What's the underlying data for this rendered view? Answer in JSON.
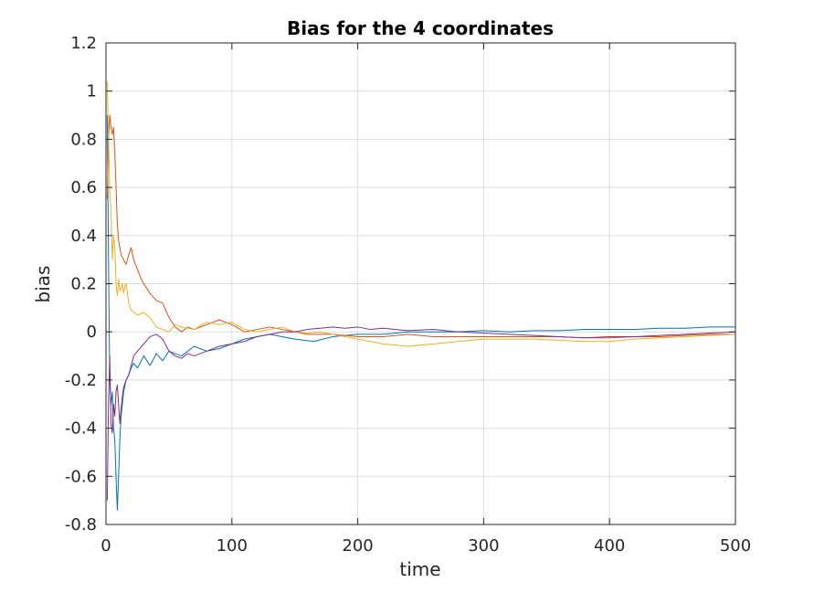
{
  "chart_data": {
    "type": "line",
    "title": "Bias for the 4 coordinates",
    "xlabel": "time",
    "ylabel": "bias",
    "xlim": [
      0,
      500
    ],
    "ylim": [
      -0.8,
      1.2
    ],
    "xticks": [
      0,
      100,
      200,
      300,
      400,
      500
    ],
    "xtick_labels": [
      "0",
      "100",
      "200",
      "300",
      "400",
      "500"
    ],
    "yticks": [
      -0.8,
      -0.6,
      -0.4,
      -0.2,
      0,
      0.2,
      0.4,
      0.6,
      0.8,
      1,
      1.2
    ],
    "ytick_labels": [
      "-0.8",
      "-0.6",
      "-0.4",
      "-0.2",
      "0",
      "0.2",
      "0.4",
      "0.6",
      "0.8",
      "1",
      "1.2"
    ],
    "grid": true,
    "legend": "none",
    "series": [
      {
        "color": "#0072BD",
        "points": [
          [
            1,
            0.9
          ],
          [
            2,
            0.3
          ],
          [
            3,
            -0.2
          ],
          [
            4,
            -0.3
          ],
          [
            5,
            -0.25
          ],
          [
            6,
            -0.4
          ],
          [
            7,
            -0.45
          ],
          [
            8,
            -0.6
          ],
          [
            9,
            -0.74
          ],
          [
            10,
            -0.6
          ],
          [
            11,
            -0.45
          ],
          [
            12,
            -0.35
          ],
          [
            14,
            -0.25
          ],
          [
            16,
            -0.2
          ],
          [
            18,
            -0.18
          ],
          [
            20,
            -0.15
          ],
          [
            22,
            -0.13
          ],
          [
            25,
            -0.15
          ],
          [
            30,
            -0.1
          ],
          [
            35,
            -0.14
          ],
          [
            40,
            -0.09
          ],
          [
            45,
            -0.12
          ],
          [
            50,
            -0.08
          ],
          [
            60,
            -0.1
          ],
          [
            70,
            -0.06
          ],
          [
            80,
            -0.08
          ],
          [
            90,
            -0.07
          ],
          [
            100,
            -0.05
          ],
          [
            110,
            -0.03
          ],
          [
            120,
            -0.02
          ],
          [
            130,
            -0.01
          ],
          [
            140,
            -0.02
          ],
          [
            150,
            -0.03
          ],
          [
            165,
            -0.04
          ],
          [
            180,
            -0.02
          ],
          [
            200,
            -0.01
          ],
          [
            220,
            -0.01
          ],
          [
            240,
            0.0
          ],
          [
            260,
            0.0
          ],
          [
            280,
            0.0
          ],
          [
            300,
            0.005
          ],
          [
            320,
            0.0
          ],
          [
            340,
            0.005
          ],
          [
            360,
            0.005
          ],
          [
            380,
            0.01
          ],
          [
            400,
            0.01
          ],
          [
            420,
            0.01
          ],
          [
            440,
            0.015
          ],
          [
            460,
            0.015
          ],
          [
            480,
            0.02
          ],
          [
            500,
            0.02
          ]
        ]
      },
      {
        "color": "#D95319",
        "points": [
          [
            1,
            0.55
          ],
          [
            2,
            0.8
          ],
          [
            3,
            0.9
          ],
          [
            4,
            0.85
          ],
          [
            5,
            0.82
          ],
          [
            6,
            0.85
          ],
          [
            7,
            0.75
          ],
          [
            8,
            0.6
          ],
          [
            9,
            0.45
          ],
          [
            10,
            0.38
          ],
          [
            12,
            0.32
          ],
          [
            14,
            0.3
          ],
          [
            16,
            0.28
          ],
          [
            18,
            0.32
          ],
          [
            20,
            0.35
          ],
          [
            22,
            0.3
          ],
          [
            25,
            0.26
          ],
          [
            28,
            0.22
          ],
          [
            30,
            0.2
          ],
          [
            35,
            0.16
          ],
          [
            40,
            0.13
          ],
          [
            45,
            0.12
          ],
          [
            50,
            0.06
          ],
          [
            55,
            0.02
          ],
          [
            60,
            0.0
          ],
          [
            65,
            0.02
          ],
          [
            70,
            0.01
          ],
          [
            80,
            0.03
          ],
          [
            90,
            0.05
          ],
          [
            100,
            0.03
          ],
          [
            110,
            0.0
          ],
          [
            120,
            0.01
          ],
          [
            130,
            0.02
          ],
          [
            140,
            0.01
          ],
          [
            150,
            0.0
          ],
          [
            160,
            -0.01
          ],
          [
            180,
            -0.01
          ],
          [
            200,
            -0.02
          ],
          [
            220,
            -0.02
          ],
          [
            240,
            -0.01
          ],
          [
            260,
            -0.02
          ],
          [
            280,
            -0.02
          ],
          [
            300,
            -0.02
          ],
          [
            320,
            -0.02
          ],
          [
            340,
            -0.02
          ],
          [
            360,
            -0.02
          ],
          [
            380,
            -0.025
          ],
          [
            400,
            -0.025
          ],
          [
            420,
            -0.02
          ],
          [
            440,
            -0.02
          ],
          [
            460,
            -0.015
          ],
          [
            480,
            -0.01
          ],
          [
            500,
            -0.01
          ]
        ]
      },
      {
        "color": "#EDB120",
        "points": [
          [
            1,
            1.04
          ],
          [
            2,
            0.8
          ],
          [
            3,
            0.6
          ],
          [
            4,
            0.5
          ],
          [
            5,
            0.3
          ],
          [
            6,
            0.4
          ],
          [
            7,
            0.35
          ],
          [
            8,
            0.2
          ],
          [
            9,
            0.15
          ],
          [
            10,
            0.22
          ],
          [
            11,
            0.17
          ],
          [
            12,
            0.18
          ],
          [
            13,
            0.2
          ],
          [
            14,
            0.16
          ],
          [
            15,
            0.19
          ],
          [
            16,
            0.2
          ],
          [
            18,
            0.12
          ],
          [
            20,
            0.09
          ],
          [
            25,
            0.07
          ],
          [
            30,
            0.08
          ],
          [
            35,
            0.06
          ],
          [
            40,
            0.02
          ],
          [
            45,
            0.01
          ],
          [
            50,
            0.0
          ],
          [
            55,
            0.03
          ],
          [
            60,
            0.02
          ],
          [
            70,
            0.01
          ],
          [
            80,
            0.04
          ],
          [
            90,
            0.03
          ],
          [
            100,
            0.04
          ],
          [
            110,
            0.01
          ],
          [
            120,
            0.0
          ],
          [
            130,
            0.01
          ],
          [
            140,
            0.02
          ],
          [
            150,
            0.0
          ],
          [
            160,
            -0.005
          ],
          [
            170,
            0.0
          ],
          [
            180,
            -0.01
          ],
          [
            190,
            -0.02
          ],
          [
            200,
            -0.03
          ],
          [
            220,
            -0.05
          ],
          [
            240,
            -0.06
          ],
          [
            260,
            -0.05
          ],
          [
            280,
            -0.04
          ],
          [
            300,
            -0.03
          ],
          [
            320,
            -0.03
          ],
          [
            340,
            -0.03
          ],
          [
            360,
            -0.035
          ],
          [
            380,
            -0.04
          ],
          [
            400,
            -0.04
          ],
          [
            420,
            -0.03
          ],
          [
            440,
            -0.025
          ],
          [
            460,
            -0.02
          ],
          [
            480,
            -0.015
          ],
          [
            500,
            -0.01
          ]
        ]
      },
      {
        "color": "#7E2F8E",
        "points": [
          [
            1,
            -0.7
          ],
          [
            2,
            -0.3
          ],
          [
            3,
            -0.1
          ],
          [
            4,
            -0.38
          ],
          [
            5,
            -0.42
          ],
          [
            6,
            -0.3
          ],
          [
            7,
            -0.35
          ],
          [
            8,
            -0.25
          ],
          [
            9,
            -0.22
          ],
          [
            10,
            -0.3
          ],
          [
            11,
            -0.38
          ],
          [
            12,
            -0.32
          ],
          [
            13,
            -0.27
          ],
          [
            14,
            -0.23
          ],
          [
            16,
            -0.2
          ],
          [
            18,
            -0.18
          ],
          [
            20,
            -0.14
          ],
          [
            22,
            -0.1
          ],
          [
            25,
            -0.08
          ],
          [
            30,
            -0.05
          ],
          [
            35,
            -0.02
          ],
          [
            40,
            -0.01
          ],
          [
            45,
            -0.03
          ],
          [
            50,
            -0.08
          ],
          [
            55,
            -0.1
          ],
          [
            60,
            -0.11
          ],
          [
            65,
            -0.09
          ],
          [
            70,
            -0.1
          ],
          [
            80,
            -0.08
          ],
          [
            90,
            -0.06
          ],
          [
            100,
            -0.05
          ],
          [
            110,
            -0.04
          ],
          [
            120,
            -0.02
          ],
          [
            130,
            -0.01
          ],
          [
            140,
            0.0
          ],
          [
            150,
            0.0
          ],
          [
            160,
            0.01
          ],
          [
            170,
            0.015
          ],
          [
            180,
            0.02
          ],
          [
            190,
            0.015
          ],
          [
            200,
            0.02
          ],
          [
            210,
            0.01
          ],
          [
            220,
            0.015
          ],
          [
            240,
            0.005
          ],
          [
            260,
            0.01
          ],
          [
            280,
            0.0
          ],
          [
            300,
            -0.005
          ],
          [
            320,
            -0.01
          ],
          [
            340,
            -0.015
          ],
          [
            360,
            -0.02
          ],
          [
            380,
            -0.025
          ],
          [
            400,
            -0.02
          ],
          [
            420,
            -0.02
          ],
          [
            440,
            -0.015
          ],
          [
            460,
            -0.01
          ],
          [
            480,
            -0.005
          ],
          [
            500,
            0.0
          ]
        ]
      }
    ]
  }
}
